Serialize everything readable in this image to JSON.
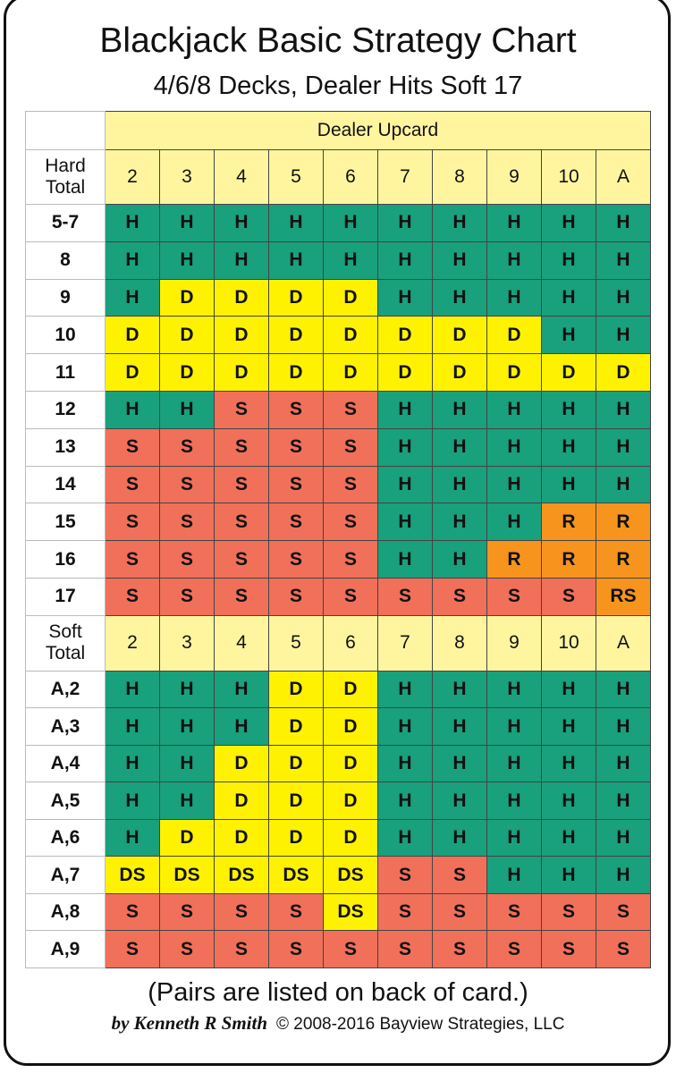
{
  "title": "Blackjack Basic Strategy Chart",
  "subtitle": "4/6/8 Decks, Dealer Hits Soft 17",
  "dealer_header": "Dealer Upcard",
  "upcards": [
    "2",
    "3",
    "4",
    "5",
    "6",
    "7",
    "8",
    "9",
    "10",
    "A"
  ],
  "colors": {
    "H": "#19a07c",
    "D": "#fff200",
    "S": "#f0705a",
    "R": "#f7941d",
    "RS": "#f7941d",
    "DS": "#fff200",
    "header": "#fff59e"
  },
  "hard": {
    "label_line1": "Hard",
    "label_line2": "Total",
    "rows": [
      {
        "total": "5-7",
        "actions": [
          "H",
          "H",
          "H",
          "H",
          "H",
          "H",
          "H",
          "H",
          "H",
          "H"
        ]
      },
      {
        "total": "8",
        "actions": [
          "H",
          "H",
          "H",
          "H",
          "H",
          "H",
          "H",
          "H",
          "H",
          "H"
        ]
      },
      {
        "total": "9",
        "actions": [
          "H",
          "D",
          "D",
          "D",
          "D",
          "H",
          "H",
          "H",
          "H",
          "H"
        ]
      },
      {
        "total": "10",
        "actions": [
          "D",
          "D",
          "D",
          "D",
          "D",
          "D",
          "D",
          "D",
          "H",
          "H"
        ]
      },
      {
        "total": "11",
        "actions": [
          "D",
          "D",
          "D",
          "D",
          "D",
          "D",
          "D",
          "D",
          "D",
          "D"
        ]
      },
      {
        "total": "12",
        "actions": [
          "H",
          "H",
          "S",
          "S",
          "S",
          "H",
          "H",
          "H",
          "H",
          "H"
        ]
      },
      {
        "total": "13",
        "actions": [
          "S",
          "S",
          "S",
          "S",
          "S",
          "H",
          "H",
          "H",
          "H",
          "H"
        ]
      },
      {
        "total": "14",
        "actions": [
          "S",
          "S",
          "S",
          "S",
          "S",
          "H",
          "H",
          "H",
          "H",
          "H"
        ]
      },
      {
        "total": "15",
        "actions": [
          "S",
          "S",
          "S",
          "S",
          "S",
          "H",
          "H",
          "H",
          "R",
          "R"
        ]
      },
      {
        "total": "16",
        "actions": [
          "S",
          "S",
          "S",
          "S",
          "S",
          "H",
          "H",
          "R",
          "R",
          "R"
        ]
      },
      {
        "total": "17",
        "actions": [
          "S",
          "S",
          "S",
          "S",
          "S",
          "S",
          "S",
          "S",
          "S",
          "RS"
        ]
      }
    ]
  },
  "soft": {
    "label_line1": "Soft",
    "label_line2": "Total",
    "rows": [
      {
        "total": "A,2",
        "actions": [
          "H",
          "H",
          "H",
          "D",
          "D",
          "H",
          "H",
          "H",
          "H",
          "H"
        ]
      },
      {
        "total": "A,3",
        "actions": [
          "H",
          "H",
          "H",
          "D",
          "D",
          "H",
          "H",
          "H",
          "H",
          "H"
        ]
      },
      {
        "total": "A,4",
        "actions": [
          "H",
          "H",
          "D",
          "D",
          "D",
          "H",
          "H",
          "H",
          "H",
          "H"
        ]
      },
      {
        "total": "A,5",
        "actions": [
          "H",
          "H",
          "D",
          "D",
          "D",
          "H",
          "H",
          "H",
          "H",
          "H"
        ]
      },
      {
        "total": "A,6",
        "actions": [
          "H",
          "D",
          "D",
          "D",
          "D",
          "H",
          "H",
          "H",
          "H",
          "H"
        ]
      },
      {
        "total": "A,7",
        "actions": [
          "DS",
          "DS",
          "DS",
          "DS",
          "DS",
          "S",
          "S",
          "H",
          "H",
          "H"
        ]
      },
      {
        "total": "A,8",
        "actions": [
          "S",
          "S",
          "S",
          "S",
          "DS",
          "S",
          "S",
          "S",
          "S",
          "S"
        ]
      },
      {
        "total": "A,9",
        "actions": [
          "S",
          "S",
          "S",
          "S",
          "S",
          "S",
          "S",
          "S",
          "S",
          "S"
        ]
      }
    ]
  },
  "footnote": "(Pairs are listed on back of card.)",
  "author": "by Kenneth R Smith",
  "copyright": "© 2008-2016 Bayview Strategies, LLC"
}
